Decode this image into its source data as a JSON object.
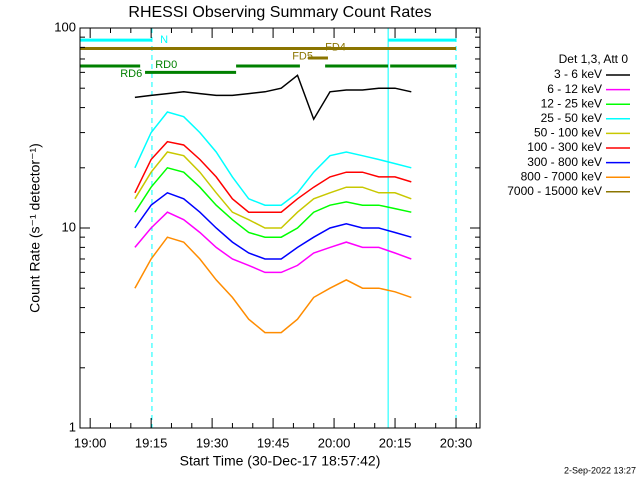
{
  "chart_data": {
    "type": "line",
    "title": "RHESSI Observing Summary Count Rates",
    "xlabel": "Start Time (30-Dec-17 18:57:42)",
    "ylabel": "Count Rate (s⁻¹ detector⁻¹)",
    "legend_title": "Det 1,3, Att 0",
    "timestamp": "2-Sep-2022 13:27",
    "log_y": true,
    "ylim": [
      1,
      100
    ],
    "yticks": [
      1,
      10,
      100
    ],
    "yminor": [
      2,
      3,
      4,
      5,
      6,
      7,
      8,
      9,
      20,
      30,
      40,
      50,
      60,
      70,
      80,
      90
    ],
    "xlim": [
      1137.5,
      1235.9
    ],
    "xticks": [
      {
        "value": 1140,
        "label": "19:00"
      },
      {
        "value": 1155,
        "label": "19:15"
      },
      {
        "value": 1170,
        "label": "19:30"
      },
      {
        "value": 1185,
        "label": "19:45"
      },
      {
        "value": 1200,
        "label": "20:00"
      },
      {
        "value": 1215,
        "label": "20:15"
      },
      {
        "value": 1230,
        "label": "20:30"
      }
    ],
    "xminor": [
      1145,
      1150,
      1160,
      1165,
      1175,
      1180,
      1190,
      1195,
      1205,
      1210,
      1220,
      1225,
      1235
    ],
    "x": [
      1151,
      1155,
      1159,
      1163,
      1167,
      1171,
      1175,
      1179,
      1183,
      1187,
      1191,
      1195,
      1199,
      1203,
      1207,
      1211,
      1215,
      1219
    ],
    "series": [
      {
        "name": "3 - 6 keV",
        "color": "#000000",
        "values": [
          45,
          46,
          47,
          48,
          47,
          46,
          46,
          47,
          48,
          50,
          58,
          35,
          48,
          49,
          49,
          50,
          50,
          48
        ]
      },
      {
        "name": "6 - 12 keV",
        "color": "#ff00ff",
        "values": [
          8,
          10,
          12,
          11,
          9.5,
          8,
          7,
          6.5,
          6,
          6,
          6.5,
          7.5,
          8,
          8.5,
          8,
          8,
          7.5,
          7
        ]
      },
      {
        "name": "12 - 25 keV",
        "color": "#00ff00",
        "values": [
          12,
          16,
          20,
          19,
          16,
          13,
          11,
          9.5,
          9,
          9,
          10,
          12,
          13,
          13.5,
          13,
          13,
          12.5,
          12
        ]
      },
      {
        "name": "25 - 50 keV",
        "color": "#00ffff",
        "values": [
          20,
          30,
          38,
          36,
          30,
          24,
          18,
          14,
          13,
          13,
          15,
          19,
          23,
          24,
          23,
          22,
          21,
          20
        ]
      },
      {
        "name": "50 - 100 keV",
        "color": "#c8c800",
        "values": [
          14,
          19,
          24,
          23,
          19,
          15,
          12,
          11,
          10,
          10,
          12,
          14,
          15,
          16,
          16,
          15,
          15,
          14
        ]
      },
      {
        "name": "100 - 300 keV",
        "color": "#ff0000",
        "values": [
          15,
          22,
          27,
          26,
          22,
          18,
          14,
          12,
          12,
          12,
          14,
          16,
          18,
          19,
          19,
          18,
          18,
          17
        ]
      },
      {
        "name": "300 - 800 keV",
        "color": "#0000ff",
        "values": [
          10,
          13,
          15,
          14,
          12,
          10,
          8.5,
          7.5,
          7,
          7,
          8,
          9,
          10,
          10.5,
          10,
          10,
          9.5,
          9
        ]
      },
      {
        "name": "800 - 7000 keV",
        "color": "#ff8c00",
        "values": [
          5,
          7,
          9,
          8.5,
          7,
          5.5,
          4.5,
          3.5,
          3,
          3,
          3.5,
          4.5,
          5,
          5.5,
          5,
          5,
          4.8,
          4.5
        ]
      },
      {
        "name": "7000 - 15000 keV",
        "color": "#8b7500",
        "values": [
          null,
          null,
          null,
          null,
          null,
          null,
          null,
          null,
          null,
          null,
          null,
          null,
          null,
          null,
          null,
          null,
          null,
          null
        ]
      }
    ],
    "flags": [
      {
        "color": "#00ffff",
        "y": 87,
        "spans": [
          [
            1137.5,
            1155.2
          ],
          [
            1213.3,
            1230
          ]
        ]
      },
      {
        "color": "#8b7500",
        "y": 79,
        "spans": [
          [
            1137.5,
            1230
          ]
        ]
      },
      {
        "color": "#8b7500",
        "y": 70.8,
        "spans": [
          [
            1193.6,
            1198.5
          ]
        ]
      },
      {
        "color": "#008000",
        "y": 64.6,
        "spans": [
          [
            1137.5,
            1152.3
          ],
          [
            1175.9,
            1191.6
          ],
          [
            1197.8,
            1213.3
          ],
          [
            1213.8,
            1230
          ]
        ]
      },
      {
        "color": "#008000",
        "y": 60,
        "spans": [
          [
            1153.5,
            1175.9
          ]
        ]
      }
    ],
    "flag_labels": [
      {
        "text": "N",
        "color": "#00ffff",
        "x": 1157.2,
        "y": 87
      },
      {
        "text": "FD4",
        "color": "#8b7500",
        "x": 1197.8,
        "y": 80
      },
      {
        "text": "FD5",
        "color": "#8b7500",
        "x": 1189.7,
        "y": 72
      },
      {
        "text": "RD0",
        "color": "#008000",
        "x": 1156,
        "y": 65.3
      },
      {
        "text": "RD6",
        "color": "#008000",
        "x": 1147.4,
        "y": 58.9
      }
    ],
    "vlines": [
      {
        "x": 1155.2,
        "color": "#00ffff",
        "dashed": true
      },
      {
        "x": 1213.3,
        "color": "#00ffff",
        "dashed": false
      },
      {
        "x": 1230,
        "color": "#00ffff",
        "dashed": true
      }
    ]
  }
}
